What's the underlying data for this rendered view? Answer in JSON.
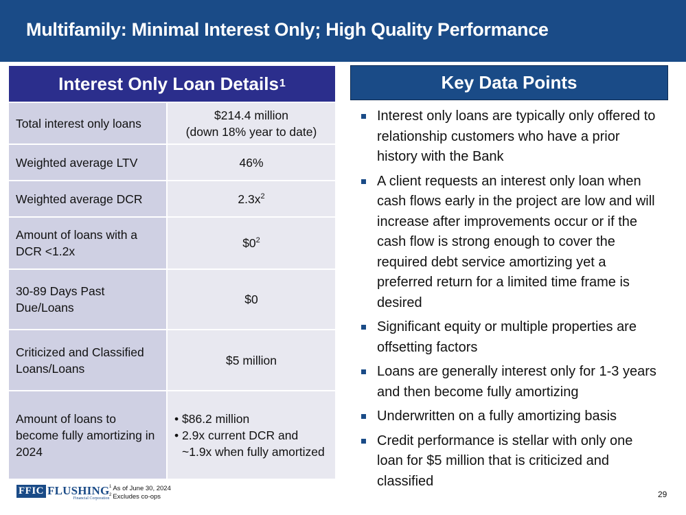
{
  "title": "Multifamily: Minimal Interest Only; High Quality Performance",
  "left_panel": {
    "header": "Interest Only Loan Details",
    "header_sup": "1",
    "rows": [
      {
        "label": "Total interest only loans",
        "value_line1": "$214.4 million",
        "value_line2": "(down 18% year to date)"
      },
      {
        "label": "Weighted average LTV",
        "value": "46%"
      },
      {
        "label": "Weighted average DCR",
        "value": "2.3x",
        "value_sup": "2"
      },
      {
        "label": "Amount of loans with a DCR <1.2x",
        "value": "$0",
        "value_sup": "2"
      },
      {
        "label": "30-89 Days Past Due/Loans",
        "value": "$0"
      },
      {
        "label": "Criticized and Classified Loans/Loans",
        "value": "$5 million"
      },
      {
        "label": "Amount of loans to become fully amortizing in 2024",
        "bullets": [
          "$86.2 million",
          "2.9x current DCR and ~1.9x when fully amortized"
        ]
      }
    ]
  },
  "right_panel": {
    "header": "Key Data Points",
    "points": [
      "Interest only loans are typically only offered to relationship customers who have a prior history with the Bank",
      "A client requests an interest only loan when cash flows early in the project are low and will increase after improvements occur or if the cash flow is strong enough to cover the required debt service amortizing yet a preferred return for a limited time frame is desired",
      "Significant equity or multiple properties are offsetting factors",
      "Loans are generally interest only for 1-3 years and then become fully amortizing",
      "Underwritten on a fully amortizing basis",
      "Credit performance is stellar with only one loan for $5 million that is criticized and classified"
    ]
  },
  "footer": {
    "logo_box": "FFIC",
    "logo_word": "FLUSHING",
    "logo_sub": "Financial Corporation",
    "footnotes": [
      {
        "num": "1",
        "text": "As of June 30, 2024"
      },
      {
        "num": "2",
        "text": "Excludes co-ops"
      }
    ],
    "page_number": "29"
  },
  "colors": {
    "title_bar": "#1a4b87",
    "left_header": "#2b2e8c",
    "label_cell": "#cfd0e3",
    "value_cell": "#e8e8f0",
    "bullet": "#1a4b87"
  }
}
